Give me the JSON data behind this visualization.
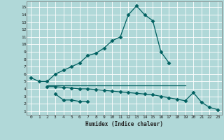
{
  "xlabel": "Humidex (Indice chaleur)",
  "background_color": "#b0d8d8",
  "grid_color": "#ffffff",
  "line_color": "#006060",
  "xlim": [
    -0.5,
    23.5
  ],
  "ylim": [
    0.5,
    15.8
  ],
  "x_ticks": [
    0,
    1,
    2,
    3,
    4,
    5,
    6,
    7,
    8,
    9,
    10,
    11,
    12,
    13,
    14,
    15,
    16,
    17,
    18,
    19,
    20,
    21,
    22,
    23
  ],
  "y_ticks": [
    1,
    2,
    3,
    4,
    5,
    6,
    7,
    8,
    9,
    10,
    11,
    12,
    13,
    14,
    15
  ],
  "series1_x": [
    0,
    1,
    2,
    3,
    4,
    5,
    6,
    7,
    8,
    9,
    10,
    11,
    12,
    13,
    14,
    15,
    16,
    17
  ],
  "series1_y": [
    5.5,
    5.0,
    5.0,
    6.0,
    6.5,
    7.0,
    7.5,
    8.5,
    8.8,
    9.5,
    10.5,
    11.0,
    14.0,
    15.2,
    14.0,
    13.2,
    9.0,
    7.5
  ],
  "series2_x": [
    2,
    3,
    4,
    5,
    6,
    7,
    8,
    9,
    10,
    11,
    12,
    13,
    14,
    15,
    16,
    17,
    18,
    19
  ],
  "series2_y": [
    4.5,
    4.5,
    4.5,
    4.5,
    4.5,
    4.5,
    4.5,
    4.5,
    4.5,
    4.5,
    4.5,
    4.5,
    4.5,
    4.5,
    4.5,
    4.5,
    4.5,
    4.5
  ],
  "series3_x": [
    3,
    4,
    5,
    6,
    7
  ],
  "series3_y": [
    3.3,
    2.5,
    2.5,
    2.3,
    2.3
  ],
  "series4_x": [
    2,
    3,
    4,
    5,
    6,
    7,
    8,
    9,
    10,
    11,
    12,
    13,
    14,
    15,
    16,
    17,
    18,
    19,
    20,
    21,
    22,
    23
  ],
  "series4_y": [
    4.3,
    4.3,
    4.2,
    4.1,
    4.0,
    4.0,
    3.9,
    3.8,
    3.7,
    3.6,
    3.5,
    3.4,
    3.3,
    3.2,
    3.0,
    2.8,
    2.6,
    2.4,
    3.5,
    2.2,
    1.5,
    1.2
  ]
}
